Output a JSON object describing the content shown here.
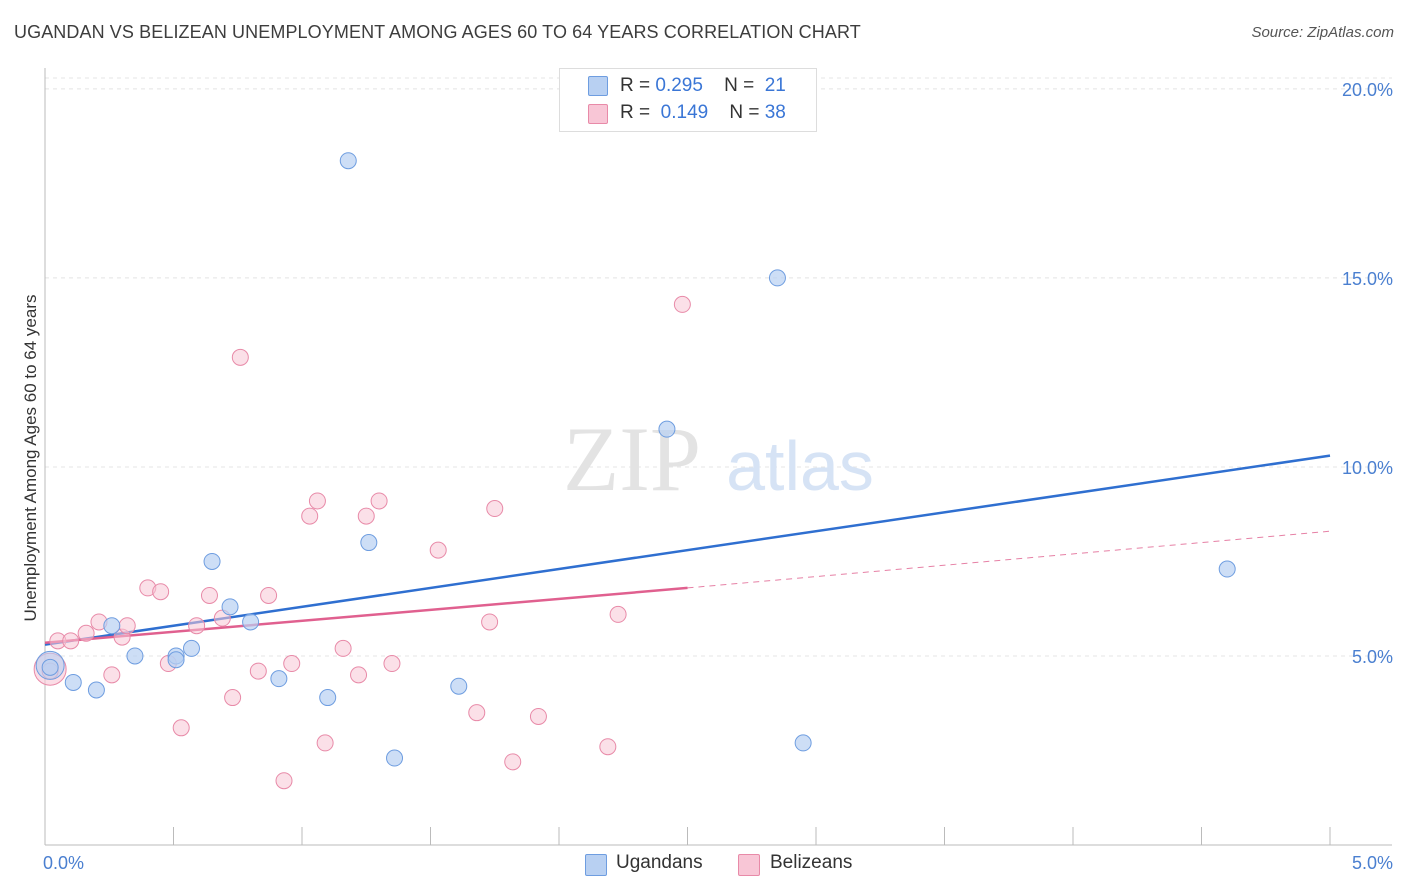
{
  "header": {
    "title": "UGANDAN VS BELIZEAN UNEMPLOYMENT AMONG AGES 60 TO 64 YEARS CORRELATION CHART",
    "source": "Source: ZipAtlas.com"
  },
  "watermark": {
    "zip": "ZIP",
    "atlas": "atlas"
  },
  "legend": {
    "rows": [
      {
        "r_label": "R =",
        "r_value": "0.295",
        "n_label": "N =",
        "n_value": "21"
      },
      {
        "r_label": "R =",
        "r_value": "0.149",
        "n_label": "N =",
        "n_value": "38"
      }
    ]
  },
  "bottom_legend": {
    "ugandans": "Ugandans",
    "belizeans": "Belizeans"
  },
  "colors": {
    "ugandan_fill": "#b8d0f2",
    "ugandan_stroke": "#6e9de0",
    "ugandan_line": "#2f6fd0",
    "belizean_fill": "#f8c6d6",
    "belizean_stroke": "#e88aa8",
    "belizean_line": "#e0608f",
    "tick_text": "#4a7fd0"
  },
  "chart_data": {
    "type": "scatter",
    "title": "UGANDAN VS BELIZEAN UNEMPLOYMENT AMONG AGES 60 TO 64 YEARS CORRELATION CHART",
    "xlabel": "",
    "ylabel": "Unemployment Among Ages 60 to 64 years",
    "xlim": [
      0,
      5
    ],
    "ylim": [
      0,
      20.5
    ],
    "x_tick_labels": [
      "0.0%",
      "5.0%"
    ],
    "y_tick_labels": [
      "5.0%",
      "10.0%",
      "15.0%",
      "20.0%"
    ],
    "y_ticks": [
      5,
      10,
      15,
      20
    ],
    "grid": true,
    "legend_position": "top-center",
    "series": [
      {
        "name": "Ugandans",
        "r": 0.295,
        "n": 21,
        "points": [
          [
            0.02,
            4.7
          ],
          [
            0.11,
            4.3
          ],
          [
            0.2,
            4.1
          ],
          [
            0.26,
            5.8
          ],
          [
            0.35,
            5.0
          ],
          [
            0.51,
            5.0
          ],
          [
            0.51,
            4.9
          ],
          [
            0.57,
            5.2
          ],
          [
            0.65,
            7.5
          ],
          [
            0.72,
            6.3
          ],
          [
            0.8,
            5.9
          ],
          [
            0.91,
            4.4
          ],
          [
            1.1,
            3.9
          ],
          [
            1.18,
            18.1
          ],
          [
            1.26,
            8.0
          ],
          [
            1.36,
            2.3
          ],
          [
            1.61,
            4.2
          ],
          [
            2.42,
            11.0
          ],
          [
            2.85,
            15.0
          ],
          [
            2.95,
            2.7
          ],
          [
            4.6,
            7.3
          ]
        ],
        "trend": {
          "x": [
            0,
            5
          ],
          "y": [
            5.3,
            10.3
          ]
        }
      },
      {
        "name": "Belizeans",
        "r": 0.149,
        "n": 38,
        "points": [
          [
            0.02,
            4.6
          ],
          [
            0.05,
            5.4
          ],
          [
            0.1,
            5.4
          ],
          [
            0.16,
            5.6
          ],
          [
            0.21,
            5.9
          ],
          [
            0.26,
            4.5
          ],
          [
            0.3,
            5.5
          ],
          [
            0.32,
            5.8
          ],
          [
            0.4,
            6.8
          ],
          [
            0.45,
            6.7
          ],
          [
            0.48,
            4.8
          ],
          [
            0.53,
            3.1
          ],
          [
            0.59,
            5.8
          ],
          [
            0.64,
            6.6
          ],
          [
            0.69,
            6.0
          ],
          [
            0.73,
            3.9
          ],
          [
            0.76,
            12.9
          ],
          [
            0.83,
            4.6
          ],
          [
            0.87,
            6.6
          ],
          [
            0.93,
            1.7
          ],
          [
            0.96,
            4.8
          ],
          [
            1.03,
            8.7
          ],
          [
            1.06,
            9.1
          ],
          [
            1.09,
            2.7
          ],
          [
            1.16,
            5.2
          ],
          [
            1.22,
            4.5
          ],
          [
            1.25,
            8.7
          ],
          [
            1.3,
            9.1
          ],
          [
            1.35,
            4.8
          ],
          [
            1.53,
            7.8
          ],
          [
            1.68,
            3.5
          ],
          [
            1.73,
            5.9
          ],
          [
            1.75,
            8.9
          ],
          [
            1.82,
            2.2
          ],
          [
            1.92,
            3.4
          ],
          [
            2.19,
            2.6
          ],
          [
            2.23,
            6.1
          ],
          [
            2.48,
            14.3
          ]
        ],
        "trend": {
          "x": [
            0,
            2.5
          ],
          "y": [
            5.35,
            6.8
          ]
        },
        "trend_extension": {
          "x": [
            2.5,
            5
          ],
          "y": [
            6.8,
            8.3
          ]
        }
      }
    ]
  }
}
